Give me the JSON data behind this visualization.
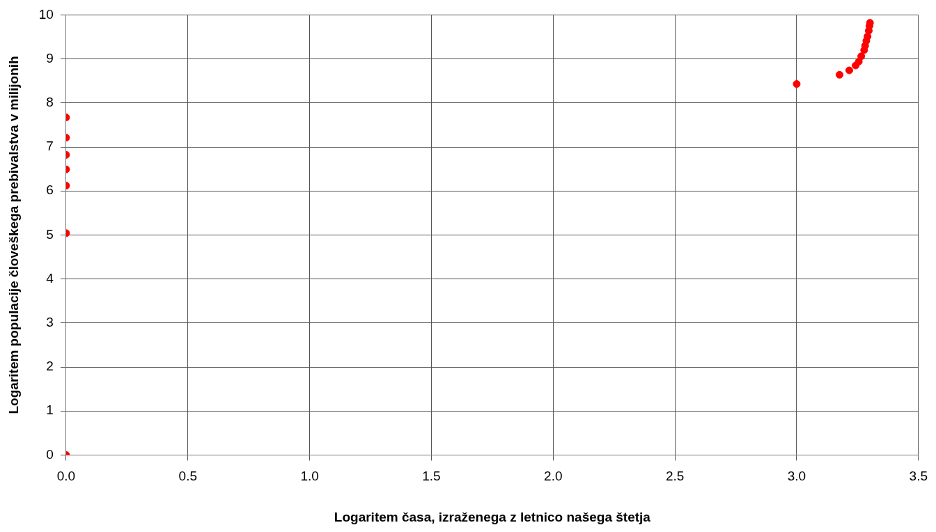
{
  "chart_data": {
    "type": "scatter",
    "xlabel": "Logaritem časa, izraženega z letnico našega štetja",
    "ylabel": "Logaritem populacije človeškega prebivalstva v milijonih",
    "series": [
      {
        "color": "#ff0000",
        "x": [
          0,
          0,
          0,
          0,
          0,
          0,
          0,
          3.0,
          3.176,
          3.216,
          3.242,
          3.255,
          3.265,
          3.277,
          3.281,
          3.286,
          3.291,
          3.296,
          3.299,
          3.301
        ],
        "values": [
          0,
          5.04,
          6.12,
          6.49,
          6.82,
          7.21,
          7.67,
          8.43,
          8.64,
          8.74,
          8.85,
          8.94,
          9.06,
          9.2,
          9.3,
          9.41,
          9.51,
          9.64,
          9.75,
          9.82
        ]
      }
    ],
    "xlim": [
      0,
      3.5
    ],
    "xticks": [
      {
        "value": 0,
        "label": "0.0"
      },
      {
        "value": 0.5,
        "label": "0.5"
      },
      {
        "value": 1,
        "label": "1.0"
      },
      {
        "value": 1.5,
        "label": "1.5"
      },
      {
        "value": 2,
        "label": "2.0"
      },
      {
        "value": 2.5,
        "label": "2.5"
      },
      {
        "value": 3,
        "label": "3.0"
      },
      {
        "value": 3.5,
        "label": "3.5"
      }
    ],
    "ylim": [
      0,
      10
    ],
    "yticks": [
      0,
      1,
      2,
      3,
      4,
      5,
      6,
      7,
      8,
      9,
      10
    ],
    "grid": true,
    "marker": "circle",
    "legend": false
  }
}
